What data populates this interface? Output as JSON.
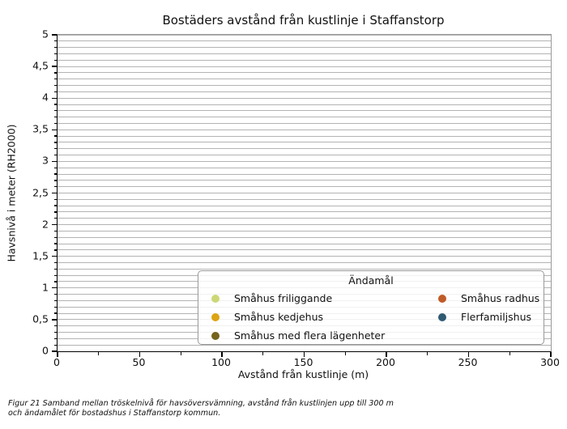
{
  "figure": {
    "title": "Bostäders avstånd från kustlinje i Staffanstorp",
    "caption": "Figur 21 Samband mellan tröskelnivå för havsöversvämning, avstånd från kustlinjen upp till 300 m och ändamålet för bostadshus i Staffanstorp kommun."
  },
  "chart_data": {
    "type": "scatter",
    "title": "Bostäders avstånd från kustlinje i Staffanstorp",
    "xlabel": "Avstånd från kustlinje (m)",
    "ylabel": "Havsnivå i meter (RH2000)",
    "xlim": [
      0,
      300
    ],
    "ylim": [
      0,
      5
    ],
    "x_tick_labels": [
      "0",
      "50",
      "100",
      "150",
      "200",
      "250",
      "300"
    ],
    "x_major_step": 50,
    "x_minor_step": 25,
    "y_tick_labels": [
      "0",
      "0,5",
      "1",
      "1,5",
      "2",
      "2,5",
      "3",
      "3,5",
      "4",
      "4,5",
      "5"
    ],
    "y_major_step": 0.5,
    "y_minor_step": 0.1,
    "grid": "horizontal gridlines at every 0.1 m",
    "grid_color": "#b3b3b3",
    "legend": {
      "title": "Ändamål",
      "position": "lower right inside axes",
      "columns": [
        [
          {
            "label": "Småhus friliggande",
            "color": "#ccd877"
          },
          {
            "label": "Småhus kedjehus",
            "color": "#dda414"
          },
          {
            "label": "Småhus med flera lägenheter",
            "color": "#75631c"
          }
        ],
        [
          {
            "label": "Småhus radhus",
            "color": "#bf5b28"
          },
          {
            "label": "Flerfamiljshus",
            "color": "#2f5a72"
          }
        ]
      ]
    },
    "series": [
      {
        "name": "Småhus friliggande",
        "color": "#ccd877",
        "points": []
      },
      {
        "name": "Småhus radhus",
        "color": "#bf5b28",
        "points": []
      },
      {
        "name": "Småhus kedjehus",
        "color": "#dda414",
        "points": []
      },
      {
        "name": "Flerfamiljshus",
        "color": "#2f5a72",
        "points": []
      },
      {
        "name": "Småhus med flera lägenheter",
        "color": "#75631c",
        "points": []
      }
    ]
  }
}
